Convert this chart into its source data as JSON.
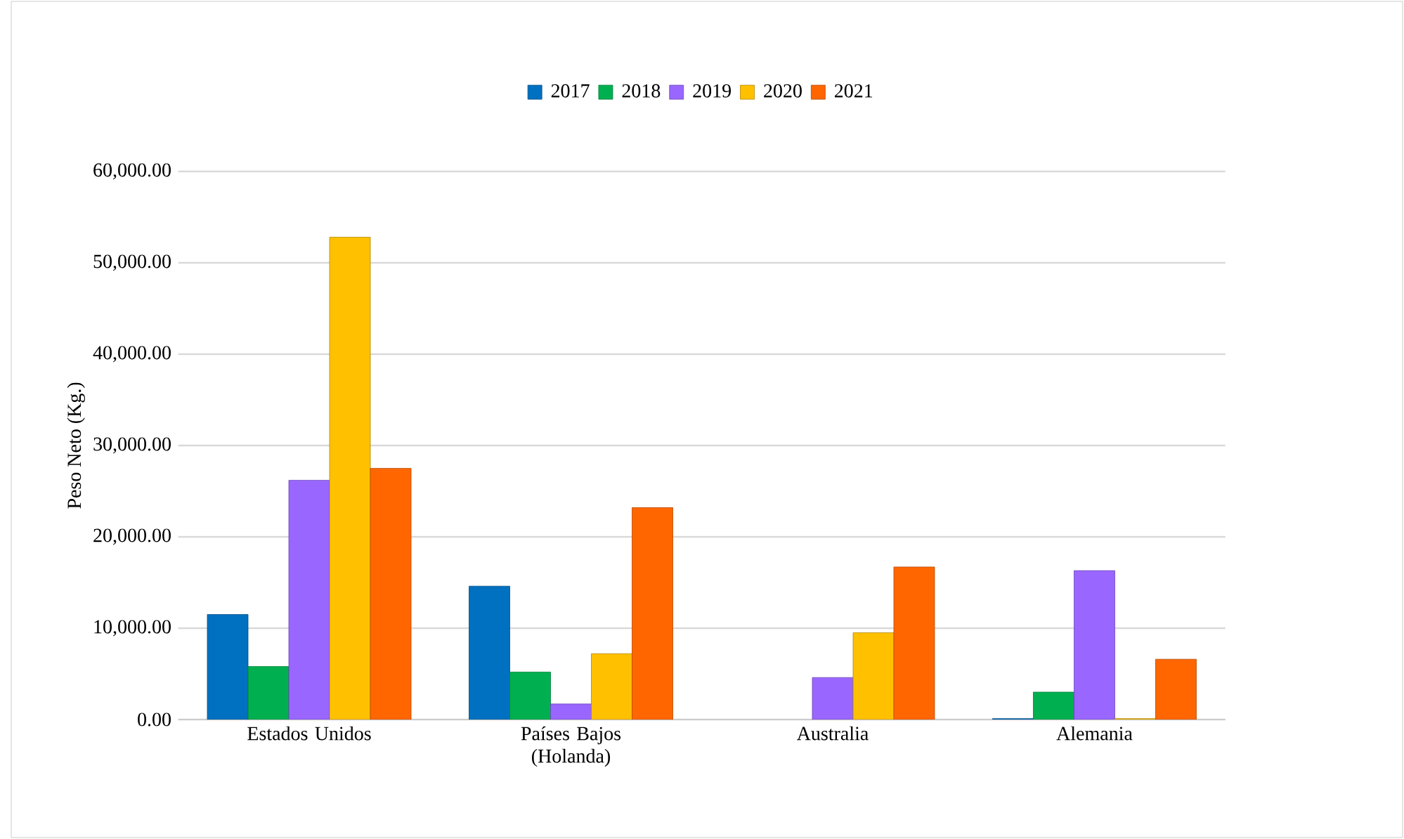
{
  "chart_data": {
    "type": "bar",
    "ylabel": "Peso Neto (Kg.)",
    "categories": [
      "Estados Unidos",
      "Países Bajos (Holanda)",
      "Australia",
      "Alemania"
    ],
    "series": [
      {
        "name": "2017",
        "color": "#0070c0",
        "values": [
          11500,
          14600,
          null,
          100
        ]
      },
      {
        "name": "2018",
        "color": "#00b050",
        "values": [
          5800,
          5200,
          null,
          3000
        ]
      },
      {
        "name": "2019",
        "color": "#9966ff",
        "values": [
          26200,
          1700,
          4600,
          16300
        ]
      },
      {
        "name": "2020",
        "color": "#ffc000",
        "values": [
          52800,
          7200,
          9500,
          100
        ]
      },
      {
        "name": "2021",
        "color": "#ff6600",
        "values": [
          27500,
          23200,
          16700,
          6600
        ]
      }
    ],
    "ylim": [
      0,
      60000
    ],
    "yticks": [
      {
        "value": 0,
        "label": "0.00"
      },
      {
        "value": 10000,
        "label": "10,000.00"
      },
      {
        "value": 20000,
        "label": "20,000.00"
      },
      {
        "value": 30000,
        "label": "30,000.00"
      },
      {
        "value": 40000,
        "label": "40,000.00"
      },
      {
        "value": 50000,
        "label": "50,000.00"
      },
      {
        "value": 60000,
        "label": "60,000.00"
      }
    ],
    "grid": "y",
    "legend": "top"
  }
}
